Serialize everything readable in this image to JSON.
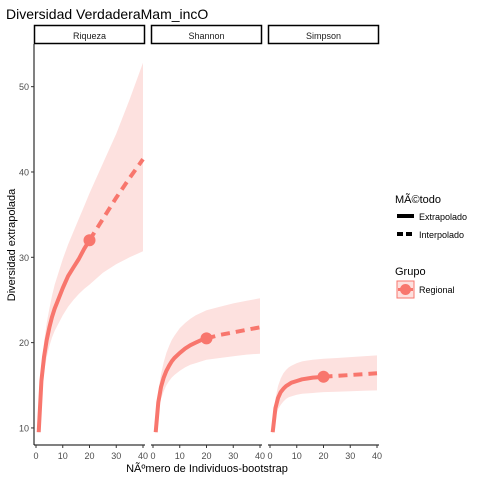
{
  "chart_data": {
    "type": "line",
    "title": "Diversidad VerdaderaMam_incO",
    "xlabel": "NÃºmero de Individuos-bootstrap",
    "ylabel": "Diversidad extrapolada",
    "xlim": [
      0,
      40
    ],
    "ylim": [
      8,
      55
    ],
    "x_ticks": [
      0,
      10,
      20,
      30,
      40
    ],
    "y_ticks": [
      10,
      20,
      30,
      40,
      50
    ],
    "grid": false,
    "legend_position": "right",
    "colors": {
      "series": "#f8766d",
      "band": "#fde1df",
      "strip_border": "#000000",
      "axis_text": "#4d4d4d"
    },
    "legend": {
      "method_title": "MÃ©todo",
      "method_items": [
        "Extrapolado",
        "Interpolado"
      ],
      "group_title": "Grupo",
      "group_items": [
        "Regional"
      ]
    },
    "facets": [
      {
        "label": "Riqueza",
        "observed": {
          "x": 20,
          "y": 32
        },
        "interpolated": {
          "x": [
            1,
            2,
            3,
            4,
            5,
            6,
            7,
            8,
            10,
            12,
            14,
            16,
            18,
            20
          ],
          "y": [
            9.5,
            15.5,
            18.3,
            20.3,
            21.8,
            23.0,
            24.0,
            24.8,
            26.4,
            27.8,
            28.8,
            29.8,
            31.0,
            32.0
          ]
        },
        "extrapolated": {
          "x": [
            20,
            25,
            30,
            35,
            40
          ],
          "y": [
            32.0,
            34.5,
            37.0,
            39.3,
            41.5
          ]
        },
        "ci_upper": [
          10.5,
          17,
          20,
          22.3,
          24,
          25.5,
          26.8,
          27.8,
          29.8,
          31.5,
          33,
          34.5,
          36,
          37.5,
          41,
          44.5,
          48.5,
          52.8
        ],
        "ci_lower": [
          9.3,
          14,
          16.5,
          18.3,
          19.6,
          20.6,
          21.4,
          22,
          23.2,
          24.2,
          25,
          25.7,
          26.3,
          26.8,
          28.2,
          29.2,
          30,
          30.7
        ]
      },
      {
        "label": "Shannon",
        "observed": {
          "x": 20,
          "y": 20.5
        },
        "interpolated": {
          "x": [
            1,
            2,
            3,
            4,
            5,
            6,
            7,
            8,
            10,
            12,
            14,
            16,
            18,
            20
          ],
          "y": [
            9.5,
            13.0,
            14.8,
            15.9,
            16.7,
            17.3,
            17.8,
            18.2,
            18.8,
            19.3,
            19.7,
            20.0,
            20.3,
            20.5
          ]
        },
        "extrapolated": {
          "x": [
            20,
            25,
            30,
            35,
            40
          ],
          "y": [
            20.5,
            20.9,
            21.2,
            21.5,
            21.8
          ]
        },
        "ci_upper": [
          10,
          14.3,
          16.3,
          17.7,
          18.8,
          19.6,
          20.3,
          20.8,
          21.7,
          22.3,
          22.8,
          23.2,
          23.5,
          23.8,
          24.2,
          24.6,
          24.9,
          25.2
        ],
        "ci_lower": [
          9.2,
          12,
          13.4,
          14.3,
          15,
          15.5,
          15.9,
          16.2,
          16.7,
          17.1,
          17.4,
          17.6,
          17.8,
          18,
          18.2,
          18.4,
          18.6,
          18.7
        ]
      },
      {
        "label": "Simpson",
        "observed": {
          "x": 20,
          "y": 16
        },
        "interpolated": {
          "x": [
            1,
            2,
            3,
            4,
            5,
            6,
            7,
            8,
            10,
            12,
            14,
            16,
            18,
            20
          ],
          "y": [
            9.5,
            12.3,
            13.5,
            14.2,
            14.6,
            14.9,
            15.1,
            15.3,
            15.5,
            15.7,
            15.8,
            15.9,
            15.95,
            16.0
          ]
        },
        "extrapolated": {
          "x": [
            20,
            25,
            30,
            35,
            40
          ],
          "y": [
            16.0,
            16.1,
            16.2,
            16.3,
            16.4
          ]
        },
        "ci_upper": [
          10,
          13.4,
          14.9,
          15.8,
          16.4,
          16.8,
          17.1,
          17.3,
          17.6,
          17.8,
          17.9,
          18,
          18.05,
          18.1,
          18.2,
          18.3,
          18.4,
          18.5
        ],
        "ci_lower": [
          9.2,
          11.2,
          12.2,
          12.7,
          13.1,
          13.4,
          13.6,
          13.7,
          13.9,
          14,
          14.05,
          14.1,
          14.15,
          14.2,
          14.25,
          14.3,
          14.35,
          14.4
        ]
      }
    ]
  }
}
